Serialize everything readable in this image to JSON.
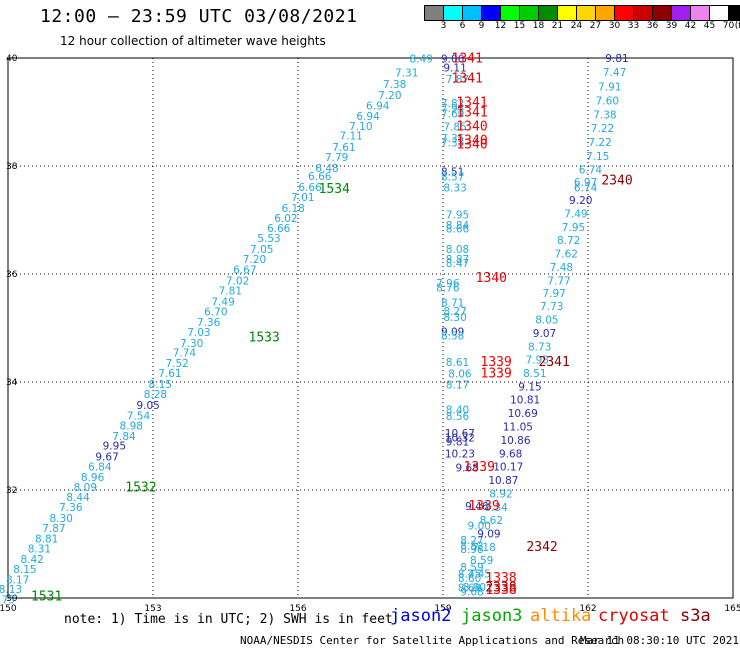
{
  "header": {
    "title": "12:00 – 23:59 UTC 03/08/2021",
    "subtitle": "12 hour collection of altimeter wave heights"
  },
  "legend": {
    "unit": "(ft)",
    "colors": [
      "#7f7f7f",
      "#00ffff",
      "#00bfff",
      "#0000ff",
      "#00ff00",
      "#00cd00",
      "#008b00",
      "#ffff00",
      "#ffd700",
      "#ffa500",
      "#ff0000",
      "#cd0000",
      "#8b0000",
      "#a020f0",
      "#ee82ee",
      "#ffffff",
      "#000000"
    ],
    "labels": [
      "3",
      "6",
      "9",
      "12",
      "15",
      "18",
      "21",
      "24",
      "27",
      "30",
      "33",
      "36",
      "39",
      "42",
      "45",
      "70"
    ]
  },
  "map_data": {
    "type": "geographic track map",
    "lon_range": [
      150,
      165
    ],
    "lat_range": [
      30,
      40
    ],
    "lon_ticks": [
      "150",
      "153",
      "156",
      "159",
      "162",
      "165"
    ],
    "lat_ticks": [
      "40",
      "38",
      "36",
      "34",
      "32",
      "30"
    ],
    "grid": "dotted",
    "tracks": [
      {
        "mission": "jason3",
        "color": "#00aadd",
        "points": [
          {
            "lon": 154.8,
            "lat": 35.4,
            "v": "7.31"
          },
          {
            "lon": 155.0,
            "lat": 35.7,
            "v": "7.38"
          }
        ]
      }
    ],
    "swh_labels": [
      {
        "lon": 159.2,
        "lat": 39.92,
        "t": "9.06",
        "c": "#2a2aaa"
      },
      {
        "lon": 158.55,
        "lat": 39.92,
        "t": "8.49",
        "c": "#22aadd"
      },
      {
        "lon": 159.25,
        "lat": 39.75,
        "t": "9.11",
        "c": "#2a2aaa"
      },
      {
        "lon": 158.25,
        "lat": 39.66,
        "t": "7.31",
        "c": "#22aadd"
      },
      {
        "lon": 159.3,
        "lat": 39.54,
        "t": "7.87",
        "c": "#22aadd"
      },
      {
        "lon": 158.0,
        "lat": 39.44,
        "t": "7.38",
        "c": "#22aadd"
      },
      {
        "lon": 157.9,
        "lat": 39.24,
        "t": "7.20",
        "c": "#22aadd"
      },
      {
        "lon": 157.65,
        "lat": 39.05,
        "t": "6.94",
        "c": "#22aadd"
      },
      {
        "lon": 159.2,
        "lat": 39.09,
        "t": "7.82",
        "c": "#22aadd"
      },
      {
        "lon": 159.2,
        "lat": 39.0,
        "t": "7.94",
        "c": "#22aadd"
      },
      {
        "lon": 159.2,
        "lat": 38.9,
        "t": "7.69",
        "c": "#22aadd"
      },
      {
        "lon": 157.45,
        "lat": 38.85,
        "t": "6.94",
        "c": "#22aadd"
      },
      {
        "lon": 157.3,
        "lat": 38.67,
        "t": "7.10",
        "c": "#22aadd"
      },
      {
        "lon": 159.25,
        "lat": 38.66,
        "t": "7.85",
        "c": "#22aadd"
      },
      {
        "lon": 157.1,
        "lat": 38.49,
        "t": "7.11",
        "c": "#22aadd"
      },
      {
        "lon": 159.2,
        "lat": 38.44,
        "t": "7.35",
        "c": "#22aadd"
      },
      {
        "lon": 159.2,
        "lat": 38.36,
        "t": "7.35",
        "c": "#22aadd"
      },
      {
        "lon": 156.95,
        "lat": 38.28,
        "t": "7.61",
        "c": "#22aadd"
      },
      {
        "lon": 156.8,
        "lat": 38.09,
        "t": "7.79",
        "c": "#22aadd"
      },
      {
        "lon": 156.6,
        "lat": 37.89,
        "t": "6.48",
        "c": "#22aadd"
      },
      {
        "lon": 156.45,
        "lat": 37.74,
        "t": "6.66",
        "c": "#22aadd"
      },
      {
        "lon": 159.2,
        "lat": 37.82,
        "t": "8.51",
        "c": "#2a2aaa"
      },
      {
        "lon": 159.2,
        "lat": 37.73,
        "t": "8.57",
        "c": "#22aadd"
      },
      {
        "lon": 156.25,
        "lat": 37.54,
        "t": "6.66",
        "c": "#22aadd"
      },
      {
        "lon": 159.25,
        "lat": 37.53,
        "t": "8.33",
        "c": "#22aadd"
      },
      {
        "lon": 156.1,
        "lat": 37.35,
        "t": "7.01",
        "c": "#22aadd"
      },
      {
        "lon": 155.9,
        "lat": 37.15,
        "t": "6.18",
        "c": "#22aadd"
      },
      {
        "lon": 159.3,
        "lat": 37.03,
        "t": "7.95",
        "c": "#22aadd"
      },
      {
        "lon": 155.75,
        "lat": 36.96,
        "t": "6.02",
        "c": "#22aadd"
      },
      {
        "lon": 159.3,
        "lat": 36.83,
        "t": "8.84",
        "c": "#22aadd"
      },
      {
        "lon": 159.3,
        "lat": 36.77,
        "t": "8.66",
        "c": "#22aadd"
      },
      {
        "lon": 155.6,
        "lat": 36.78,
        "t": "6.66",
        "c": "#22aadd"
      },
      {
        "lon": 155.4,
        "lat": 36.59,
        "t": "5.53",
        "c": "#22aadd"
      },
      {
        "lon": 155.25,
        "lat": 36.39,
        "t": "7.05",
        "c": "#22aadd"
      },
      {
        "lon": 159.3,
        "lat": 36.39,
        "t": "8.08",
        "c": "#22aadd"
      },
      {
        "lon": 155.1,
        "lat": 36.2,
        "t": "7.20",
        "c": "#22aadd"
      },
      {
        "lon": 159.3,
        "lat": 36.2,
        "t": "8.87",
        "c": "#22aadd"
      },
      {
        "lon": 159.3,
        "lat": 36.13,
        "t": "8.47",
        "c": "#22aadd"
      },
      {
        "lon": 154.9,
        "lat": 36.01,
        "t": "6.67",
        "c": "#22aadd"
      },
      {
        "lon": 154.75,
        "lat": 35.81,
        "t": "7.02",
        "c": "#22aadd"
      },
      {
        "lon": 159.1,
        "lat": 35.76,
        "t": "7.96",
        "c": "#22aadd"
      },
      {
        "lon": 159.1,
        "lat": 35.68,
        "t": "8.76",
        "c": "#22aadd"
      },
      {
        "lon": 154.6,
        "lat": 35.62,
        "t": "7.81",
        "c": "#22aadd"
      },
      {
        "lon": 154.45,
        "lat": 35.42,
        "t": "7.49",
        "c": "#22aadd"
      },
      {
        "lon": 159.2,
        "lat": 35.4,
        "t": "8.71",
        "c": "#22aadd"
      },
      {
        "lon": 159.25,
        "lat": 35.24,
        "t": "8.27",
        "c": "#22aadd"
      },
      {
        "lon": 159.25,
        "lat": 35.13,
        "t": "8.30",
        "c": "#22aadd"
      },
      {
        "lon": 154.3,
        "lat": 35.23,
        "t": "6.70",
        "c": "#22aadd"
      },
      {
        "lon": 154.15,
        "lat": 35.04,
        "t": "7.36",
        "c": "#22aadd"
      },
      {
        "lon": 153.95,
        "lat": 34.85,
        "t": "7.03",
        "c": "#22aadd"
      },
      {
        "lon": 159.2,
        "lat": 34.86,
        "t": "9.09",
        "c": "#2a2aaa"
      },
      {
        "lon": 159.2,
        "lat": 34.79,
        "t": "8.58",
        "c": "#22aadd"
      },
      {
        "lon": 153.8,
        "lat": 34.65,
        "t": "7.30",
        "c": "#22aadd"
      },
      {
        "lon": 153.65,
        "lat": 34.47,
        "t": "7.74",
        "c": "#22aadd"
      },
      {
        "lon": 153.5,
        "lat": 34.28,
        "t": "7.52",
        "c": "#22aadd"
      },
      {
        "lon": 159.3,
        "lat": 34.3,
        "t": "8.61",
        "c": "#22aadd"
      },
      {
        "lon": 153.35,
        "lat": 34.09,
        "t": "7.61",
        "c": "#22aadd"
      },
      {
        "lon": 159.35,
        "lat": 34.08,
        "t": "8.06",
        "c": "#22aadd"
      },
      {
        "lon": 153.15,
        "lat": 33.89,
        "t": "8.15",
        "c": "#22aadd"
      },
      {
        "lon": 159.3,
        "lat": 33.88,
        "t": "8.17",
        "c": "#22aadd"
      },
      {
        "lon": 153.05,
        "lat": 33.7,
        "t": "8.28",
        "c": "#22aadd"
      },
      {
        "lon": 152.9,
        "lat": 33.5,
        "t": "9.05",
        "c": "#2a2aaa"
      },
      {
        "lon": 152.7,
        "lat": 33.31,
        "t": "7.54",
        "c": "#22aadd"
      },
      {
        "lon": 159.3,
        "lat": 33.42,
        "t": "8.40",
        "c": "#22aadd"
      },
      {
        "lon": 159.3,
        "lat": 33.3,
        "t": "8.56",
        "c": "#22aadd"
      },
      {
        "lon": 152.55,
        "lat": 33.12,
        "t": "8.98",
        "c": "#22aadd"
      },
      {
        "lon": 152.4,
        "lat": 32.93,
        "t": "7.84",
        "c": "#22aadd"
      },
      {
        "lon": 159.35,
        "lat": 32.98,
        "t": "10.67",
        "c": "#2a2aaa"
      },
      {
        "lon": 159.35,
        "lat": 32.9,
        "t": "10.32",
        "c": "#2a2aaa"
      },
      {
        "lon": 159.3,
        "lat": 32.82,
        "t": "9.81",
        "c": "#2a2aaa"
      },
      {
        "lon": 152.2,
        "lat": 32.75,
        "t": "9.95",
        "c": "#2a2aaa"
      },
      {
        "lon": 152.05,
        "lat": 32.55,
        "t": "9.67",
        "c": "#2a2aaa"
      },
      {
        "lon": 159.35,
        "lat": 32.6,
        "t": "10.23",
        "c": "#2a2aaa"
      },
      {
        "lon": 151.9,
        "lat": 32.36,
        "t": "6.84",
        "c": "#22aadd"
      },
      {
        "lon": 151.75,
        "lat": 32.17,
        "t": "8.96",
        "c": "#22aadd"
      },
      {
        "lon": 159.5,
        "lat": 32.34,
        "t": "9.68",
        "c": "#2a2aaa"
      },
      {
        "lon": 151.6,
        "lat": 31.98,
        "t": "8.09",
        "c": "#22aadd"
      },
      {
        "lon": 151.45,
        "lat": 31.8,
        "t": "8.44",
        "c": "#22aadd"
      },
      {
        "lon": 151.3,
        "lat": 31.61,
        "t": "7.36",
        "c": "#22aadd"
      },
      {
        "lon": 159.7,
        "lat": 31.63,
        "t": "9.46",
        "c": "#2a2aaa"
      },
      {
        "lon": 151.1,
        "lat": 31.41,
        "t": "8.30",
        "c": "#22aadd"
      },
      {
        "lon": 150.95,
        "lat": 31.22,
        "t": "7.87",
        "c": "#22aadd"
      },
      {
        "lon": 159.75,
        "lat": 31.27,
        "t": "9.00",
        "c": "#22aadd"
      },
      {
        "lon": 150.8,
        "lat": 31.03,
        "t": "8.81",
        "c": "#22aadd"
      },
      {
        "lon": 159.6,
        "lat": 31.0,
        "t": "8.27",
        "c": "#22aadd"
      },
      {
        "lon": 159.6,
        "lat": 30.9,
        "t": "8.52",
        "c": "#22aadd"
      },
      {
        "lon": 159.6,
        "lat": 30.83,
        "t": "8.98",
        "c": "#22aadd"
      },
      {
        "lon": 150.65,
        "lat": 30.84,
        "t": "8.31",
        "c": "#22aadd"
      },
      {
        "lon": 150.5,
        "lat": 30.65,
        "t": "8.42",
        "c": "#22aadd"
      },
      {
        "lon": 150.35,
        "lat": 30.46,
        "t": "8.15",
        "c": "#22aadd"
      },
      {
        "lon": 159.6,
        "lat": 30.5,
        "t": "8.59",
        "c": "#22aadd"
      },
      {
        "lon": 150.2,
        "lat": 30.27,
        "t": "8.17",
        "c": "#22aadd"
      },
      {
        "lon": 159.55,
        "lat": 30.38,
        "t": "8.45",
        "c": "#22aadd"
      },
      {
        "lon": 159.55,
        "lat": 30.3,
        "t": "8.60",
        "c": "#22aadd"
      },
      {
        "lon": 150.05,
        "lat": 30.09,
        "t": "8.13",
        "c": "#22aadd"
      },
      {
        "lon": 159.55,
        "lat": 30.12,
        "t": "8.68",
        "c": "#22aadd"
      },
      {
        "lon": 149.9,
        "lat": 29.9,
        "t": "8.75",
        "c": "#22aadd"
      },
      {
        "lon": 159.6,
        "lat": 30.05,
        "t": "9.68",
        "c": "#22aadd"
      },
      {
        "lon": 162.6,
        "lat": 39.93,
        "t": "9.81",
        "c": "#2a2aaa"
      },
      {
        "lon": 162.55,
        "lat": 39.67,
        "t": "7.47",
        "c": "#22aadd"
      },
      {
        "lon": 162.45,
        "lat": 39.4,
        "t": "7.91",
        "c": "#22aadd"
      },
      {
        "lon": 162.4,
        "lat": 39.14,
        "t": "7.60",
        "c": "#22aadd"
      },
      {
        "lon": 162.35,
        "lat": 38.88,
        "t": "7.38",
        "c": "#22aadd"
      },
      {
        "lon": 162.3,
        "lat": 38.63,
        "t": "7.22",
        "c": "#22aadd"
      },
      {
        "lon": 162.25,
        "lat": 38.37,
        "t": "7.22",
        "c": "#22aadd"
      },
      {
        "lon": 162.2,
        "lat": 38.11,
        "t": "7.15",
        "c": "#22aadd"
      },
      {
        "lon": 162.05,
        "lat": 37.86,
        "t": "6.74",
        "c": "#22aadd"
      },
      {
        "lon": 161.95,
        "lat": 37.63,
        "t": "6.97",
        "c": "#22aadd"
      },
      {
        "lon": 161.95,
        "lat": 37.53,
        "t": "6.74",
        "c": "#22aadd"
      },
      {
        "lon": 161.85,
        "lat": 37.3,
        "t": "9.20",
        "c": "#2a2aaa"
      },
      {
        "lon": 161.75,
        "lat": 37.05,
        "t": "7.49",
        "c": "#22aadd"
      },
      {
        "lon": 161.7,
        "lat": 36.8,
        "t": "7.95",
        "c": "#22aadd"
      },
      {
        "lon": 161.6,
        "lat": 36.56,
        "t": "8.72",
        "c": "#22aadd"
      },
      {
        "lon": 161.55,
        "lat": 36.31,
        "t": "7.62",
        "c": "#22aadd"
      },
      {
        "lon": 161.45,
        "lat": 36.06,
        "t": "7.48",
        "c": "#22aadd"
      },
      {
        "lon": 161.4,
        "lat": 35.81,
        "t": "7.77",
        "c": "#22aadd"
      },
      {
        "lon": 161.3,
        "lat": 35.57,
        "t": "7.97",
        "c": "#22aadd"
      },
      {
        "lon": 161.25,
        "lat": 35.33,
        "t": "7.73",
        "c": "#22aadd"
      },
      {
        "lon": 161.15,
        "lat": 35.08,
        "t": "8.05",
        "c": "#22aadd"
      },
      {
        "lon": 161.1,
        "lat": 34.83,
        "t": "9.07",
        "c": "#2a2aaa"
      },
      {
        "lon": 161.0,
        "lat": 34.58,
        "t": "8.73",
        "c": "#22aadd"
      },
      {
        "lon": 160.95,
        "lat": 34.34,
        "t": "7.98",
        "c": "#22aadd"
      },
      {
        "lon": 160.9,
        "lat": 34.09,
        "t": "8.51",
        "c": "#22aadd"
      },
      {
        "lon": 160.8,
        "lat": 33.84,
        "t": "9.15",
        "c": "#2a2aaa"
      },
      {
        "lon": 160.7,
        "lat": 33.6,
        "t": "10.81",
        "c": "#2a2aaa"
      },
      {
        "lon": 160.65,
        "lat": 33.35,
        "t": "10.69",
        "c": "#2a2aaa"
      },
      {
        "lon": 160.55,
        "lat": 33.1,
        "t": "11.05",
        "c": "#2a2aaa"
      },
      {
        "lon": 160.5,
        "lat": 32.85,
        "t": "10.86",
        "c": "#2a2aaa"
      },
      {
        "lon": 160.4,
        "lat": 32.6,
        "t": "9.68",
        "c": "#2a2aaa"
      },
      {
        "lon": 160.35,
        "lat": 32.36,
        "t": "10.17",
        "c": "#2a2aaa"
      },
      {
        "lon": 160.25,
        "lat": 32.11,
        "t": "10.87",
        "c": "#2a2aaa"
      },
      {
        "lon": 160.2,
        "lat": 31.86,
        "t": "8.92",
        "c": "#22aadd"
      },
      {
        "lon": 160.1,
        "lat": 31.61,
        "t": "8.34",
        "c": "#22aadd"
      },
      {
        "lon": 160.0,
        "lat": 31.37,
        "t": "8.62",
        "c": "#22aadd"
      },
      {
        "lon": 159.95,
        "lat": 31.12,
        "t": "9.09",
        "c": "#2a2aaa"
      },
      {
        "lon": 159.85,
        "lat": 30.87,
        "t": "7.18",
        "c": "#22aadd"
      },
      {
        "lon": 159.8,
        "lat": 30.63,
        "t": "8.59",
        "c": "#22aadd"
      },
      {
        "lon": 159.75,
        "lat": 30.38,
        "t": "7.45",
        "c": "#22aadd"
      },
      {
        "lon": 159.65,
        "lat": 30.13,
        "t": "8.90",
        "c": "#22aadd"
      }
    ],
    "time_labels": [
      {
        "lon": 159.5,
        "lat": 39.92,
        "t": "1341",
        "c": "#ee0000"
      },
      {
        "lon": 159.5,
        "lat": 39.55,
        "t": "1341",
        "c": "#ee0000"
      },
      {
        "lon": 159.6,
        "lat": 39.1,
        "t": "1341",
        "c": "#ee0000"
      },
      {
        "lon": 159.6,
        "lat": 38.92,
        "t": "1341",
        "c": "#ee0000"
      },
      {
        "lon": 159.6,
        "lat": 38.66,
        "t": "1340",
        "c": "#ee0000"
      },
      {
        "lon": 159.6,
        "lat": 38.4,
        "t": "1340",
        "c": "#ee0000"
      },
      {
        "lon": 159.6,
        "lat": 38.32,
        "t": "1340",
        "c": "#ee0000"
      },
      {
        "lon": 156.75,
        "lat": 37.5,
        "t": "1534",
        "c": "#008800"
      },
      {
        "lon": 162.6,
        "lat": 37.66,
        "t": "2340",
        "c": "#880000"
      },
      {
        "lon": 160.0,
        "lat": 35.85,
        "t": "1340",
        "c": "#ee0000"
      },
      {
        "lon": 155.3,
        "lat": 34.75,
        "t": "1533",
        "c": "#008800"
      },
      {
        "lon": 160.1,
        "lat": 34.3,
        "t": "1339",
        "c": "#ee0000"
      },
      {
        "lon": 160.1,
        "lat": 34.08,
        "t": "1339",
        "c": "#ee0000"
      },
      {
        "lon": 161.3,
        "lat": 34.3,
        "t": "2341",
        "c": "#880000"
      },
      {
        "lon": 159.75,
        "lat": 32.35,
        "t": "1339",
        "c": "#ee0000"
      },
      {
        "lon": 159.85,
        "lat": 31.63,
        "t": "1339",
        "c": "#ee0000"
      },
      {
        "lon": 152.75,
        "lat": 31.97,
        "t": "1532",
        "c": "#008800"
      },
      {
        "lon": 161.05,
        "lat": 30.87,
        "t": "2342",
        "c": "#880000"
      },
      {
        "lon": 160.2,
        "lat": 30.3,
        "t": "1338",
        "c": "#ee0000"
      },
      {
        "lon": 160.2,
        "lat": 30.12,
        "t": "2338",
        "c": "#880000"
      },
      {
        "lon": 160.2,
        "lat": 30.07,
        "t": "1338",
        "c": "#ee0000"
      },
      {
        "lon": 150.8,
        "lat": 29.95,
        "t": "1531",
        "c": "#008800"
      }
    ]
  },
  "note": "note: 1) Time is in UTC; 2) SWH is in feet",
  "missions": [
    {
      "name": "jason2",
      "color": "#0000dd"
    },
    {
      "name": "jason3",
      "color": "#00aa00"
    },
    {
      "name": "altika",
      "color": "#ff8c00"
    },
    {
      "name": "cryosat",
      "color": "#dd0000"
    },
    {
      "name": "s3a",
      "color": "#880000"
    }
  ],
  "footer": {
    "credit": "NOAA/NESDIS Center for Satellite Applications and Research",
    "timestamp": "Mar 11 08:30:10 UTC 2021"
  }
}
